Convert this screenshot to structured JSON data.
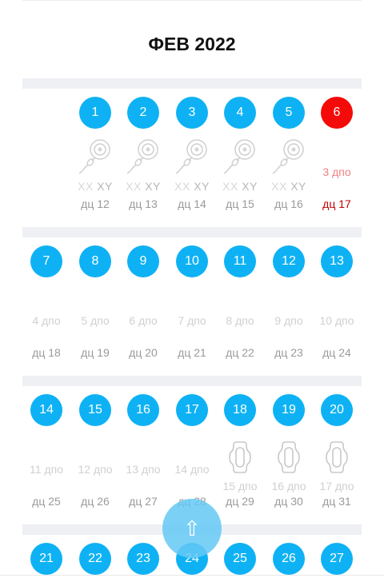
{
  "month_title": "ФЕВ 2022",
  "colors": {
    "accent_blue": "#0eb2f4",
    "today_red": "#f50a0a",
    "fab": "#64c8f4"
  },
  "weeks": [
    {
      "days": [
        {
          "col": 1,
          "day": "1",
          "type": "ovulation",
          "xx": "XX",
          "xy": "XY",
          "dc": "дц 12"
        },
        {
          "col": 2,
          "day": "2",
          "type": "ovulation",
          "xx": "XX",
          "xy": "XY",
          "dc": "дц 13"
        },
        {
          "col": 3,
          "day": "3",
          "type": "ovulation",
          "xx": "XX",
          "xy": "XY",
          "dc": "дц 14"
        },
        {
          "col": 4,
          "day": "4",
          "type": "ovulation",
          "xx": "XX",
          "xy": "XY",
          "dc": "дц 15"
        },
        {
          "col": 5,
          "day": "5",
          "type": "ovulation",
          "xx": "XX",
          "xy": "XY",
          "dc": "дц 16"
        },
        {
          "col": 6,
          "day": "6",
          "type": "today",
          "dpo": "3 дпо",
          "dc": "дц 17"
        }
      ]
    },
    {
      "days": [
        {
          "col": 0,
          "day": "7",
          "type": "plain",
          "dpo": "4 дпо",
          "dc": "дц 18"
        },
        {
          "col": 1,
          "day": "8",
          "type": "plain",
          "dpo": "5 дпо",
          "dc": "дц 19"
        },
        {
          "col": 2,
          "day": "9",
          "type": "plain",
          "dpo": "6 дпо",
          "dc": "дц 20"
        },
        {
          "col": 3,
          "day": "10",
          "type": "plain",
          "dpo": "7 дпо",
          "dc": "дц 21"
        },
        {
          "col": 4,
          "day": "11",
          "type": "plain",
          "dpo": "8 дпо",
          "dc": "дц 22"
        },
        {
          "col": 5,
          "day": "12",
          "type": "plain",
          "dpo": "9 дпо",
          "dc": "дц 23"
        },
        {
          "col": 6,
          "day": "13",
          "type": "plain",
          "dpo": "10 дпо",
          "dc": "дц 24"
        }
      ]
    },
    {
      "days": [
        {
          "col": 0,
          "day": "14",
          "type": "plain",
          "dpo": "11 дпо",
          "dc": "дц 25"
        },
        {
          "col": 1,
          "day": "15",
          "type": "plain",
          "dpo": "12 дпо",
          "dc": "дц 26"
        },
        {
          "col": 2,
          "day": "16",
          "type": "plain",
          "dpo": "13 дпо",
          "dc": "дц 27"
        },
        {
          "col": 3,
          "day": "17",
          "type": "plain",
          "dpo": "14 дпо",
          "dc": "дц 28"
        },
        {
          "col": 4,
          "day": "18",
          "type": "period",
          "dpo": "15 дпо",
          "dc": "дц 29"
        },
        {
          "col": 5,
          "day": "19",
          "type": "period",
          "dpo": "16 дпо",
          "dc": "дц 30"
        },
        {
          "col": 6,
          "day": "20",
          "type": "period",
          "dpo": "17 дпо",
          "dc": "дц 31"
        }
      ]
    },
    {
      "days": [
        {
          "col": 0,
          "day": "21",
          "type": "plain"
        },
        {
          "col": 1,
          "day": "22",
          "type": "plain"
        },
        {
          "col": 2,
          "day": "23",
          "type": "plain"
        },
        {
          "col": 3,
          "day": "24",
          "type": "plain"
        },
        {
          "col": 4,
          "day": "25",
          "type": "plain"
        },
        {
          "col": 5,
          "day": "26",
          "type": "plain"
        },
        {
          "col": 6,
          "day": "27",
          "type": "plain"
        }
      ]
    }
  ],
  "fab": {
    "icon": "arrow-up-icon",
    "glyph": "⇧"
  }
}
